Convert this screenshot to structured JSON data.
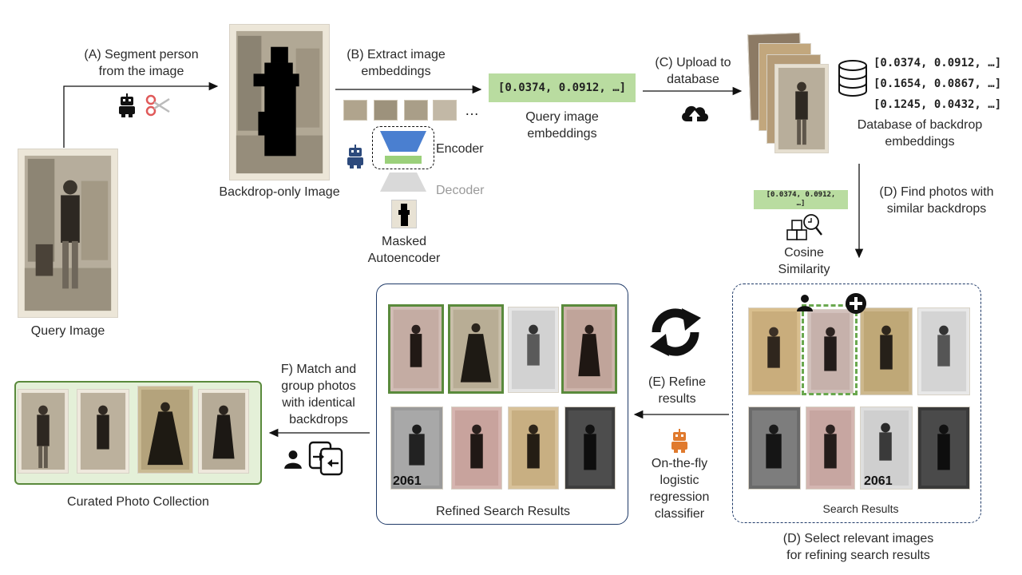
{
  "steps": {
    "a": [
      "(A) Segment person",
      "from the image"
    ],
    "b": [
      "(B) Extract image",
      "embeddings"
    ],
    "c": [
      "(C) Upload to",
      "database"
    ],
    "d_find": [
      "(D) Find photos with",
      "similar backdrops"
    ],
    "e": [
      "(E) Refine",
      "results"
    ],
    "f": [
      "F) Match and",
      "group photos",
      "with identical",
      "backdrops"
    ],
    "d_select": [
      "(D) Select relevant images",
      "for refining search results"
    ]
  },
  "labels": {
    "query_image": "Query Image",
    "backdrop_only": "Backdrop-only Image",
    "encoder": "Encoder",
    "decoder": "Decoder",
    "mae": [
      "Masked",
      "Autoencoder"
    ],
    "query_embeddings": [
      "Query image",
      "embeddings"
    ],
    "database": [
      "Database of backdrop",
      "embeddings"
    ],
    "cosine": [
      "Cosine",
      "Similarity"
    ],
    "classifier": [
      "On-the-fly",
      "logistic",
      "regression",
      "classifier"
    ],
    "search_results": "Search Results",
    "refined_results": "Refined Search Results",
    "curated": "Curated Photo Collection",
    "ellipsis": "…",
    "photo_number": "2061"
  },
  "embeddings": {
    "query": "[0.0374, 0.0912, …]",
    "db_rows": [
      "[0.0374, 0.0912, …]",
      "[0.1654, 0.0867, …]",
      "[0.1245, 0.0432, …]"
    ],
    "cosine_box": [
      "[0.0374, 0.0912,",
      "…]"
    ]
  },
  "colors": {
    "embedding_green": "#b9dca0",
    "selection_green": "#5a8a3c",
    "panel_navy": "#1f3a68",
    "robot_navy": "#2d4a7c",
    "robot_orange": "#e07a2e",
    "encoder_blue": "#4a7fd0",
    "curated_bg": "#e4f0d8"
  },
  "icons": [
    "robot-icon",
    "scissors-icon",
    "cloud-upload-icon",
    "database-icon",
    "cosine-similarity-icon",
    "refresh-icon",
    "person-icon",
    "add-icon",
    "merge-icon"
  ]
}
